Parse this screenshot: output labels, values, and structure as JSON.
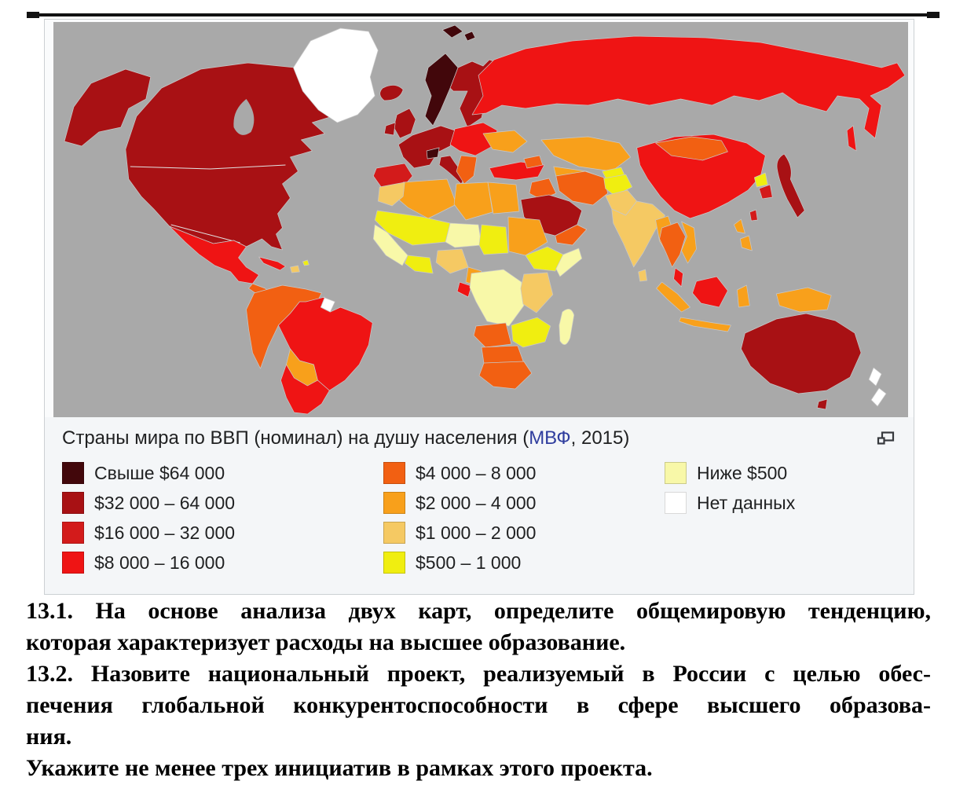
{
  "figure": {
    "title": {
      "prefix": "Страны мира по ВВП (номинал) на душу населения (",
      "link": "МВФ",
      "suffix": ", 2015)"
    },
    "link_color": "#2f3d9e",
    "ocean_color": "#a9a9a9",
    "bands": {
      "b1": {
        "label": "Свыше $64 000",
        "color": "#42070b"
      },
      "b2": {
        "label": "$32 000 – 64 000",
        "color": "#a81114"
      },
      "b3": {
        "label": "$16 000 – 32 000",
        "color": "#d31b1b"
      },
      "b4": {
        "label": "$8 000 – 16 000",
        "color": "#ef1414"
      },
      "b5": {
        "label": "$4 000 – 8 000",
        "color": "#f26012"
      },
      "b6": {
        "label": "$2 000 – 4 000",
        "color": "#f8a01b"
      },
      "b7": {
        "label": "$1 000 – 2 000",
        "color": "#f5c963"
      },
      "b8": {
        "label": "$500 – 1 000",
        "color": "#f0ee10"
      },
      "b9": {
        "label": "Ниже $500",
        "color": "#f8f8a8"
      },
      "nd": {
        "label": "Нет данных",
        "color": "#ffffff"
      }
    },
    "legend_layout": [
      [
        "b1",
        "b2",
        "b3",
        "b4"
      ],
      [
        "b5",
        "b6",
        "b7",
        "b8"
      ],
      [
        "b9",
        "nd"
      ]
    ],
    "map_regions": {
      "alaska": "b2",
      "canada_usa": "b2",
      "greenland": "nd",
      "iceland": "b2",
      "svalbard": "b1",
      "norway": "b1",
      "sweden_finland": "b2",
      "uk": "b2",
      "ireland": "b2",
      "west_europe": "b2",
      "switzerland": "b1",
      "iberia": "b3",
      "italy": "b2",
      "east_europe": "b4",
      "ukraine": "b6",
      "balkans": "b5",
      "turkey": "b4",
      "russia": "b4",
      "sakhalin": "b4",
      "kazakhstan": "b6",
      "central_asia": "b6",
      "kyrgyz_tajik": "b8",
      "caucasus": "b5",
      "iraq": "b5",
      "iran": "b5",
      "saudi_peninsula": "b2",
      "yemen_oman": "b5",
      "afghanistan": "b8",
      "pakistan": "b7",
      "india": "b7",
      "sri_lanka": "b7",
      "myanmar_bangladesh": "b6",
      "china": "b4",
      "mongolia": "b5",
      "north_korea": "b8",
      "south_korea": "b3",
      "japan": "b2",
      "taiwan": "b3",
      "thailand": "b5",
      "vietnam": "b6",
      "malay_peninsula": "b4",
      "sumatra": "b6",
      "borneo": "b4",
      "java": "b6",
      "sulawesi": "b6",
      "new_guinea": "b6",
      "philippines": "b6",
      "australia": "b2",
      "tasmania": "b2",
      "new_zealand": "nd",
      "mexico": "b4",
      "central_america": "b5",
      "cuba": "b4",
      "hispaniola": "b7",
      "caribbean_small": "b8",
      "sa_northwest": "b5",
      "french_guiana": "nd",
      "brazil": "b4",
      "bolivia_paraguay": "b6",
      "argentina_chile": "b4",
      "algeria": "b6",
      "morocco": "b7",
      "libya": "b6",
      "egypt": "b6",
      "mauritania_mali": "b8",
      "niger": "b9",
      "chad": "b8",
      "sudan": "b6",
      "ethiopia": "b8",
      "somalia": "b9",
      "west_africa_coast": "b9",
      "ghana_ivory": "b8",
      "nigeria": "b7",
      "cameroon": "b6",
      "gabon": "b4",
      "drc_central": "b9",
      "kenya_tanzania": "b7",
      "angola": "b5",
      "zambia_mozambique": "b8",
      "namibia_botswana": "b5",
      "south_africa": "b5",
      "madagascar": "b9"
    }
  },
  "questions": {
    "lines": [
      {
        "text": "13.1. На основе анализа двух карт, определите общемировую тенденцию,",
        "stretch": true
      },
      {
        "text": "которая характеризует расходы на высшее образование.",
        "stretch": false
      },
      {
        "text": "13.2. Назовите национальный проект, реализуемый в России с целью обес-",
        "stretch": true
      },
      {
        "text": "печения глобальной конкурентоспособности в сфере высшего образова-",
        "stretch": true
      },
      {
        "text": "ния.",
        "stretch": false
      },
      {
        "text": "Укажите не менее трех инициатив в рамках этого проекта.",
        "stretch": false
      }
    ]
  }
}
